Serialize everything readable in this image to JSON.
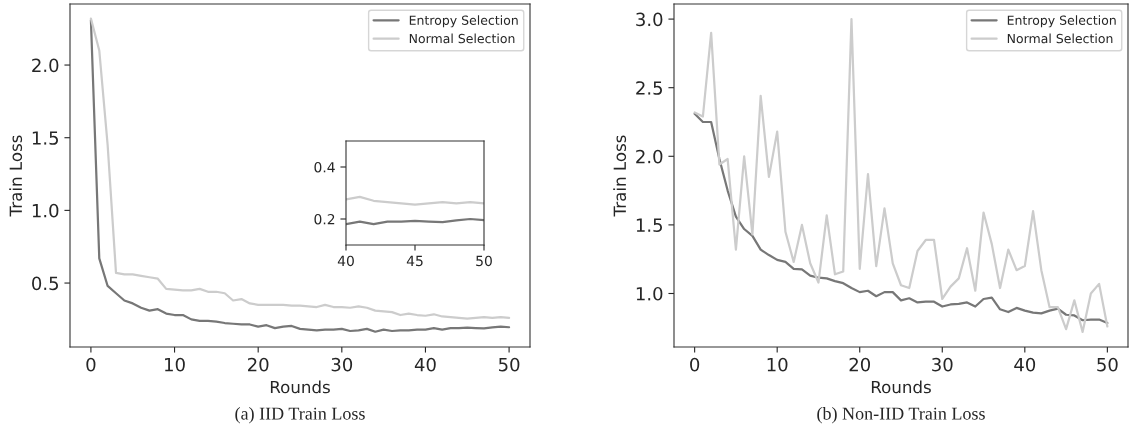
{
  "chart_data": [
    {
      "type": "line",
      "title": "(a) IID Train Loss",
      "xlabel": "Rounds",
      "ylabel": "Train Loss",
      "xlim": [
        -2.5,
        52.5
      ],
      "xticks": [
        0,
        10,
        20,
        30,
        40,
        50
      ],
      "ylim": [
        0.06,
        2.42
      ],
      "yticks": [
        0.5,
        {
          "value": 1,
          "label": "1.0"
        },
        1.5,
        {
          "value": 2,
          "label": "2.0"
        }
      ],
      "legend": "top right",
      "grid": false,
      "x": [
        0,
        1,
        2,
        3,
        4,
        5,
        6,
        7,
        8,
        9,
        10,
        11,
        12,
        13,
        14,
        15,
        16,
        17,
        18,
        19,
        20,
        21,
        22,
        23,
        24,
        25,
        26,
        27,
        28,
        29,
        30,
        31,
        32,
        33,
        34,
        35,
        36,
        37,
        38,
        39,
        40,
        41,
        42,
        43,
        44,
        45,
        46,
        47,
        48,
        49,
        50
      ],
      "series": [
        {
          "name": "Entropy Selection",
          "color": "#777777",
          "values": [
            2.31,
            0.67,
            0.48,
            0.43,
            0.38,
            0.36,
            0.33,
            0.31,
            0.32,
            0.29,
            0.28,
            0.28,
            0.25,
            0.24,
            0.24,
            0.235,
            0.225,
            0.22,
            0.215,
            0.215,
            0.2,
            0.21,
            0.19,
            0.2,
            0.205,
            0.185,
            0.18,
            0.175,
            0.18,
            0.18,
            0.185,
            0.17,
            0.175,
            0.185,
            0.165,
            0.18,
            0.17,
            0.175,
            0.175,
            0.18,
            0.18,
            0.19,
            0.18,
            0.19,
            0.19,
            0.193,
            0.19,
            0.188,
            0.195,
            0.2,
            0.196
          ]
        },
        {
          "name": "Normal Selection",
          "color": "#cccccc",
          "values": [
            2.32,
            2.1,
            1.45,
            0.57,
            0.56,
            0.56,
            0.55,
            0.54,
            0.53,
            0.46,
            0.455,
            0.45,
            0.45,
            0.46,
            0.44,
            0.44,
            0.43,
            0.38,
            0.39,
            0.36,
            0.35,
            0.35,
            0.35,
            0.35,
            0.345,
            0.345,
            0.34,
            0.335,
            0.35,
            0.335,
            0.335,
            0.33,
            0.34,
            0.33,
            0.31,
            0.305,
            0.3,
            0.28,
            0.29,
            0.28,
            0.275,
            0.285,
            0.27,
            0.265,
            0.26,
            0.255,
            0.26,
            0.265,
            0.26,
            0.265,
            0.26
          ]
        }
      ]
    },
    {
      "type": "line",
      "xlim": [
        40,
        50
      ],
      "xticks": [
        40,
        45,
        50
      ],
      "ylim": [
        0.1,
        0.5
      ],
      "yticks": [
        0.2,
        0.4
      ],
      "grid": false,
      "x": [
        40,
        41,
        42,
        43,
        44,
        45,
        46,
        47,
        48,
        49,
        50
      ],
      "series": [
        {
          "color": "#777777",
          "values": [
            0.18,
            0.19,
            0.18,
            0.19,
            0.19,
            0.193,
            0.19,
            0.188,
            0.195,
            0.2,
            0.196
          ]
        },
        {
          "color": "#cccccc",
          "values": [
            0.275,
            0.285,
            0.27,
            0.265,
            0.26,
            0.255,
            0.26,
            0.265,
            0.26,
            0.265,
            0.26
          ]
        }
      ]
    },
    {
      "type": "line",
      "title": "(b) Non-IID Train Loss",
      "xlabel": "Rounds",
      "ylabel": "Train Loss",
      "xlim": [
        -2.5,
        52.5
      ],
      "xticks": [
        0,
        10,
        20,
        30,
        40,
        50
      ],
      "ylim": [
        0.61,
        3.11
      ],
      "yticks": [
        {
          "value": 1,
          "label": "1.0"
        },
        1.5,
        {
          "value": 2,
          "label": "2.0"
        },
        2.5,
        {
          "value": 3,
          "label": "3.0"
        }
      ],
      "legend": "top right",
      "grid": false,
      "x": [
        0,
        1,
        2,
        3,
        4,
        5,
        6,
        7,
        8,
        9,
        10,
        11,
        12,
        13,
        14,
        15,
        16,
        17,
        18,
        19,
        20,
        21,
        22,
        23,
        24,
        25,
        26,
        27,
        28,
        29,
        30,
        31,
        32,
        33,
        34,
        35,
        36,
        37,
        38,
        39,
        40,
        41,
        42,
        43,
        44,
        45,
        46,
        47,
        48,
        49,
        50
      ],
      "series": [
        {
          "name": "Entropy Selection",
          "color": "#777777",
          "values": [
            2.31,
            2.25,
            2.25,
            1.98,
            1.75,
            1.56,
            1.47,
            1.42,
            1.32,
            1.28,
            1.245,
            1.23,
            1.18,
            1.175,
            1.13,
            1.115,
            1.11,
            1.09,
            1.075,
            1.04,
            1.01,
            1.02,
            0.98,
            1.01,
            1.01,
            0.95,
            0.965,
            0.935,
            0.94,
            0.94,
            0.905,
            0.92,
            0.925,
            0.935,
            0.905,
            0.96,
            0.97,
            0.885,
            0.865,
            0.895,
            0.875,
            0.86,
            0.855,
            0.875,
            0.89,
            0.845,
            0.84,
            0.805,
            0.81,
            0.81,
            0.785
          ]
        },
        {
          "name": "Normal Selection",
          "color": "#cccccc",
          "values": [
            2.32,
            2.29,
            2.9,
            1.94,
            1.98,
            1.32,
            2.0,
            1.43,
            2.44,
            1.85,
            2.18,
            1.45,
            1.23,
            1.5,
            1.22,
            1.08,
            1.57,
            1.14,
            1.16,
            3.0,
            1.18,
            1.87,
            1.2,
            1.62,
            1.22,
            1.06,
            1.04,
            1.31,
            1.39,
            1.39,
            0.96,
            1.05,
            1.11,
            1.33,
            1.02,
            1.59,
            1.36,
            1.04,
            1.32,
            1.17,
            1.2,
            1.6,
            1.17,
            0.9,
            0.9,
            0.74,
            0.95,
            0.72,
            1.0,
            1.07,
            0.76
          ]
        }
      ]
    }
  ]
}
